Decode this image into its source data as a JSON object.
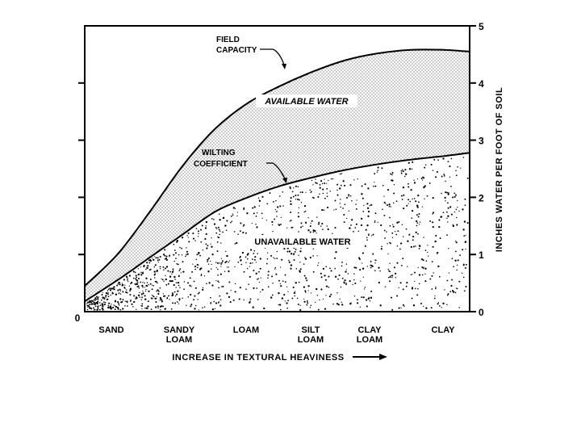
{
  "chart_data": {
    "type": "area",
    "title": "",
    "xlabel": "INCREASE IN TEXTURAL HEAVINESS",
    "xlabel_arrow": "→",
    "ylabel": "INCHES WATER PER FOOT OF SOIL",
    "ylim": [
      0,
      5
    ],
    "yticks": [
      "0",
      "1",
      "2",
      "3",
      "4",
      "5"
    ],
    "left_axis_zero_label": "0",
    "categories": [
      {
        "lines": [
          "SAND"
        ]
      },
      {
        "lines": [
          "SANDY",
          "LOAM"
        ]
      },
      {
        "lines": [
          "LOAM"
        ]
      },
      {
        "lines": [
          "SILT",
          "LOAM"
        ]
      },
      {
        "lines": [
          "CLAY",
          "LOAM"
        ]
      },
      {
        "lines": [
          "CLAY"
        ]
      }
    ],
    "series": [
      {
        "name": "FIELD CAPACITY",
        "x": [
          0,
          0.5,
          1,
          1.5,
          2,
          2.5,
          3,
          3.5,
          4,
          4.5,
          5,
          5.5,
          5.9
        ],
        "values": [
          0.45,
          1.0,
          1.75,
          2.55,
          3.2,
          3.65,
          3.95,
          4.2,
          4.4,
          4.52,
          4.58,
          4.58,
          4.55
        ]
      },
      {
        "name": "WILTING COEFFICIENT",
        "x": [
          0,
          0.5,
          1,
          1.5,
          2,
          2.5,
          3,
          3.5,
          4,
          4.5,
          5,
          5.5,
          5.9
        ],
        "values": [
          0.18,
          0.55,
          0.95,
          1.35,
          1.75,
          2.0,
          2.2,
          2.35,
          2.48,
          2.58,
          2.66,
          2.72,
          2.78
        ]
      }
    ],
    "annotations": {
      "field_capacity": [
        "FIELD",
        "CAPACITY"
      ],
      "wilting_coefficient": [
        "WILTING",
        "COEFFICIENT"
      ],
      "available_water": "AVAILABLE WATER",
      "unavailable_water": "UNAVAILABLE WATER"
    }
  }
}
